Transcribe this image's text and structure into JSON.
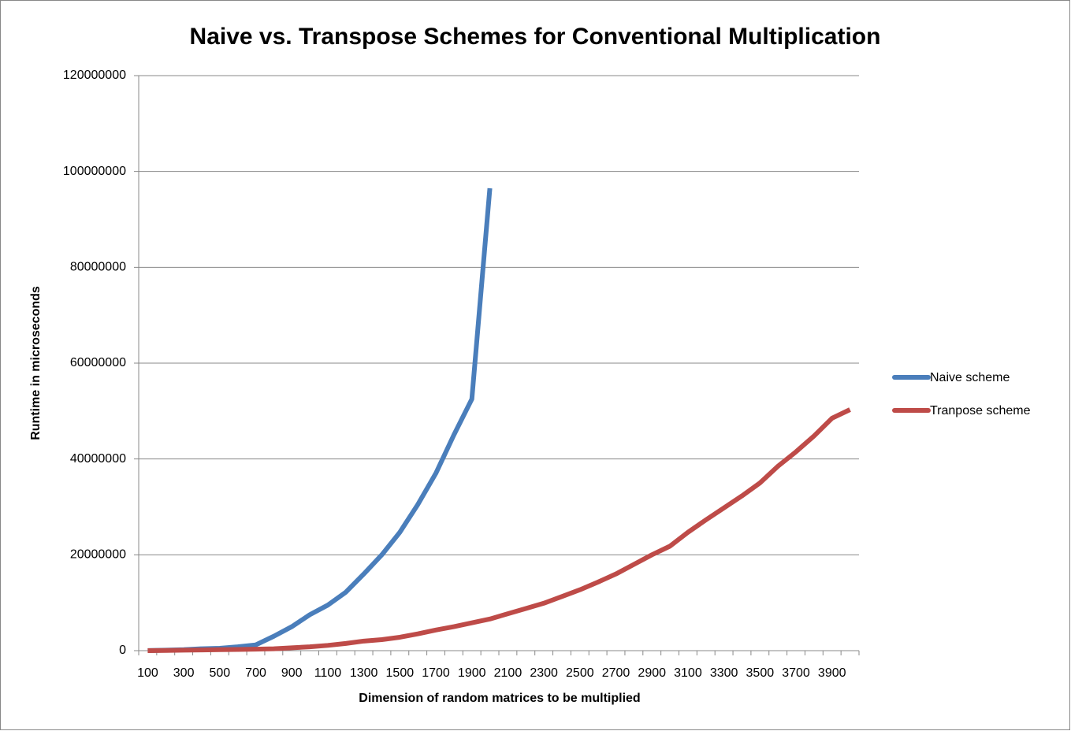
{
  "chart_data": {
    "type": "line",
    "title": "Naive vs. Transpose Schemes for Conventional Multiplication",
    "x_label": "Dimension of random matrices to be multiplied",
    "y_label": "Runtime in microseconds",
    "categories": [
      "100",
      null,
      "300",
      null,
      "500",
      null,
      "700",
      null,
      "900",
      null,
      "1100",
      null,
      "1300",
      null,
      "1500",
      null,
      "1700",
      null,
      "1900",
      null,
      "2100",
      null,
      "2300",
      null,
      "2500",
      null,
      "2700",
      null,
      "2900",
      null,
      "3100",
      null,
      "3300",
      null,
      "3500",
      null,
      "3700",
      null,
      "3900",
      null
    ],
    "series": [
      {
        "name": "Naive scheme",
        "color": "#4a7ebb",
        "values": [
          20000,
          100000,
          200000,
          400000,
          500000,
          800000,
          1200000,
          3000000,
          5000000,
          7500000,
          9500000,
          12200000,
          16000000,
          20000000,
          24700000,
          30500000,
          37000000,
          45000000,
          52500000,
          96500000,
          null,
          null,
          null,
          null,
          null,
          null,
          null,
          null,
          null,
          null,
          null,
          null,
          null,
          null,
          null,
          null,
          null,
          null,
          null,
          null
        ]
      },
      {
        "name": "Tranpose scheme",
        "color": "#be4b48",
        "values": [
          10000,
          50000,
          100000,
          150000,
          200000,
          250000,
          300000,
          400000,
          600000,
          800000,
          1100000,
          1500000,
          2000000,
          2300000,
          2800000,
          3500000,
          4300000,
          5000000,
          5800000,
          6600000,
          7700000,
          8800000,
          9900000,
          11300000,
          12700000,
          14300000,
          16000000,
          18000000,
          20000000,
          21800000,
          24700000,
          27300000,
          29800000,
          32300000,
          35000000,
          38500000,
          41500000,
          44800000,
          48500000,
          50300000
        ]
      }
    ],
    "ylim": [
      0,
      120000000
    ],
    "yticks": [
      0,
      20000000,
      40000000,
      60000000,
      80000000,
      100000000,
      120000000
    ],
    "grid": true,
    "legend": "right"
  }
}
